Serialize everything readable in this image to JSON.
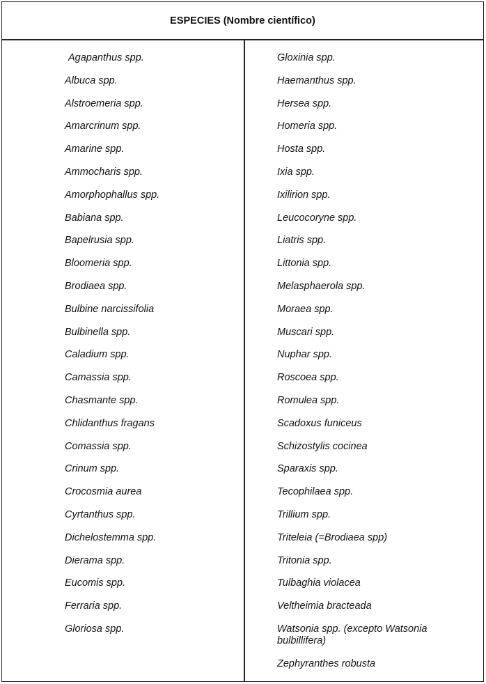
{
  "header": {
    "title": "ESPECIES (Nombre científico)"
  },
  "left_column": [
    "Agapanthus spp.",
    "Albuca spp.",
    "Alstroemeria spp.",
    "Amarcrinum spp.",
    "Amarine spp.",
    "Ammocharis spp.",
    "Amorphophallus spp.",
    "Babiana spp.",
    "Bapelrusia spp.",
    "Bloomeria spp.",
    "Brodiaea spp.",
    "Bulbine narcissifolia",
    "Bulbinella spp.",
    "Caladium spp.",
    "Camassia spp.",
    "Chasmante spp.",
    "Chlidanthus fragans",
    "Comassia spp.",
    "Crinum spp.",
    "Crocosmia aurea",
    "Cyrtanthus spp.",
    "Dichelostemma spp.",
    "Dierama spp.",
    "Eucomis spp.",
    "Ferraria spp.",
    "Gloriosa spp."
  ],
  "right_column": [
    "Gloxinia spp.",
    "Haemanthus spp.",
    "Hersea spp.",
    "Homeria spp.",
    "Hosta spp.",
    "Ixia spp.",
    "Ixilirion spp.",
    "Leucocoryne spp.",
    "Liatris spp.",
    "Littonia spp.",
    "Melasphaerola spp.",
    "Moraea spp.",
    "Muscari spp.",
    "Nuphar spp.",
    "Roscoea spp.",
    "Romulea spp.",
    "Scadoxus funiceus",
    "Schizostylis cocinea",
    "Sparaxis spp.",
    "Tecophilaea spp.",
    "Trillium spp.",
    "Triteleia (=Brodiaea spp)",
    "Tritonia spp.",
    "Tulbaghia violacea",
    "Veltheimia bracteada",
    "Watsonia spp. (excepto Watsonia bulbillifera)",
    "Zephyranthes robusta"
  ]
}
